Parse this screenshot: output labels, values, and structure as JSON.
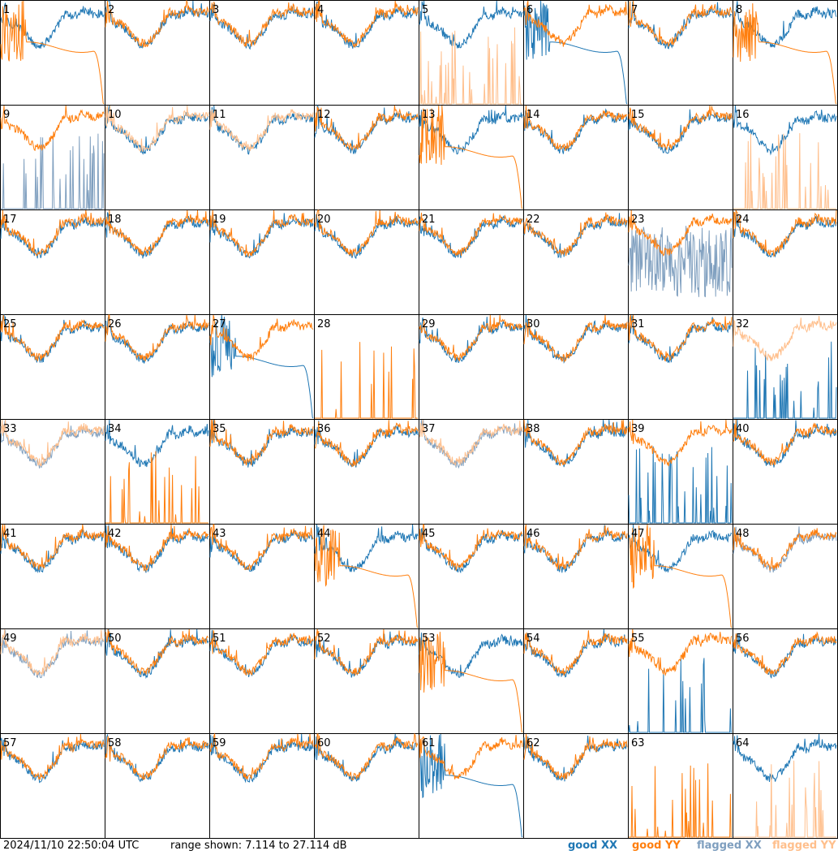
{
  "timestamp": "2024/11/10 22:50:04 UTC",
  "range_text": "range shown: 7.114 to 27.114 dB",
  "legend": {
    "good_xx": "good XX",
    "good_yy": "good YY",
    "flagged_xx": "flagged XX",
    "flagged_yy": "flagged YY"
  },
  "colors": {
    "good_xx": "#1f77b4",
    "good_yy": "#ff7f0e",
    "flagged_xx": "#7f9fbf",
    "flagged_yy": "#ffbf8c"
  },
  "chart_data": {
    "type": "line",
    "grid": "8x8 small multiples",
    "ylim_db": [
      7.114,
      27.114
    ],
    "panels": [
      {
        "id": "1",
        "xx": "good",
        "yy": "good",
        "xxShape": "normal",
        "yyShape": "rolloff"
      },
      {
        "id": "2",
        "xx": "good",
        "yy": "good",
        "xxShape": "normal",
        "yyShape": "normal"
      },
      {
        "id": "3",
        "xx": "good",
        "yy": "good",
        "xxShape": "normal",
        "yyShape": "normal"
      },
      {
        "id": "4",
        "xx": "good",
        "yy": "good",
        "xxShape": "normal",
        "yyShape": "normal"
      },
      {
        "id": "5",
        "xx": "good",
        "yy": "flagged",
        "xxShape": "normal",
        "yyShape": "spikes"
      },
      {
        "id": "6",
        "xx": "good",
        "yy": "good",
        "xxShape": "rolloff",
        "yyShape": "normal"
      },
      {
        "id": "7",
        "xx": "good",
        "yy": "good",
        "xxShape": "normal",
        "yyShape": "normal"
      },
      {
        "id": "8",
        "xx": "good",
        "yy": "good",
        "xxShape": "normal",
        "yyShape": "rolloff"
      },
      {
        "id": "9",
        "xx": "flagged",
        "yy": "good",
        "xxShape": "spikes",
        "yyShape": "normal"
      },
      {
        "id": "10",
        "xx": "good",
        "yy": "flagged",
        "xxShape": "normal",
        "yyShape": "normal"
      },
      {
        "id": "11",
        "xx": "good",
        "yy": "flagged",
        "xxShape": "normal",
        "yyShape": "normal"
      },
      {
        "id": "12",
        "xx": "good",
        "yy": "good",
        "xxShape": "normal",
        "yyShape": "normal"
      },
      {
        "id": "13",
        "xx": "good",
        "yy": "good",
        "xxShape": "normal",
        "yyShape": "rolloff"
      },
      {
        "id": "14",
        "xx": "good",
        "yy": "good",
        "xxShape": "normal",
        "yyShape": "normal"
      },
      {
        "id": "15",
        "xx": "good",
        "yy": "good",
        "xxShape": "normal",
        "yyShape": "normal"
      },
      {
        "id": "16",
        "xx": "good",
        "yy": "flagged",
        "xxShape": "normal",
        "yyShape": "spikes"
      },
      {
        "id": "17",
        "xx": "good",
        "yy": "good",
        "xxShape": "normal",
        "yyShape": "normal"
      },
      {
        "id": "18",
        "xx": "good",
        "yy": "good",
        "xxShape": "normal",
        "yyShape": "normal"
      },
      {
        "id": "19",
        "xx": "good",
        "yy": "good",
        "xxShape": "normal",
        "yyShape": "normal"
      },
      {
        "id": "20",
        "xx": "good",
        "yy": "good",
        "xxShape": "normal",
        "yyShape": "normal"
      },
      {
        "id": "21",
        "xx": "good",
        "yy": "good",
        "xxShape": "normal",
        "yyShape": "normal"
      },
      {
        "id": "22",
        "xx": "good",
        "yy": "good",
        "xxShape": "normal",
        "yyShape": "normal"
      },
      {
        "id": "23",
        "xx": "flagged",
        "yy": "good",
        "xxShape": "noisy",
        "yyShape": "normal"
      },
      {
        "id": "24",
        "xx": "good",
        "yy": "good",
        "xxShape": "normal",
        "yyShape": "normal"
      },
      {
        "id": "25",
        "xx": "good",
        "yy": "good",
        "xxShape": "normal",
        "yyShape": "normal"
      },
      {
        "id": "26",
        "xx": "good",
        "yy": "good",
        "xxShape": "normal",
        "yyShape": "normal"
      },
      {
        "id": "27",
        "xx": "good",
        "yy": "good",
        "xxShape": "rolloff",
        "yyShape": "normal"
      },
      {
        "id": "28",
        "xx": "none",
        "yy": "good",
        "xxShape": "none",
        "yyShape": "spikes"
      },
      {
        "id": "29",
        "xx": "good",
        "yy": "good",
        "xxShape": "normal",
        "yyShape": "normal"
      },
      {
        "id": "30",
        "xx": "good",
        "yy": "good",
        "xxShape": "normal",
        "yyShape": "normal"
      },
      {
        "id": "31",
        "xx": "good",
        "yy": "good",
        "xxShape": "normal",
        "yyShape": "normal"
      },
      {
        "id": "32",
        "xx": "good",
        "yy": "flagged",
        "xxShape": "spikes",
        "yyShape": "normal"
      },
      {
        "id": "33",
        "xx": "flagged",
        "yy": "flagged",
        "xxShape": "normal",
        "yyShape": "normal"
      },
      {
        "id": "34",
        "xx": "good",
        "yy": "good",
        "xxShape": "normal",
        "yyShape": "spikes"
      },
      {
        "id": "35",
        "xx": "good",
        "yy": "good",
        "xxShape": "normal",
        "yyShape": "normal"
      },
      {
        "id": "36",
        "xx": "good",
        "yy": "good",
        "xxShape": "normal",
        "yyShape": "normal"
      },
      {
        "id": "37",
        "xx": "flagged",
        "yy": "flagged",
        "xxShape": "normal",
        "yyShape": "normal"
      },
      {
        "id": "38",
        "xx": "good",
        "yy": "good",
        "xxShape": "normal",
        "yyShape": "normal"
      },
      {
        "id": "39",
        "xx": "good",
        "yy": "good",
        "xxShape": "spikes",
        "yyShape": "normal"
      },
      {
        "id": "40",
        "xx": "good",
        "yy": "good",
        "xxShape": "normal",
        "yyShape": "normal"
      },
      {
        "id": "41",
        "xx": "good",
        "yy": "good",
        "xxShape": "normal",
        "yyShape": "normal"
      },
      {
        "id": "42",
        "xx": "good",
        "yy": "good",
        "xxShape": "normal",
        "yyShape": "normal"
      },
      {
        "id": "43",
        "xx": "good",
        "yy": "good",
        "xxShape": "normal",
        "yyShape": "normal"
      },
      {
        "id": "44",
        "xx": "good",
        "yy": "good",
        "xxShape": "normal",
        "yyShape": "rolloff"
      },
      {
        "id": "45",
        "xx": "good",
        "yy": "good",
        "xxShape": "normal",
        "yyShape": "normal"
      },
      {
        "id": "46",
        "xx": "good",
        "yy": "good",
        "xxShape": "normal",
        "yyShape": "normal"
      },
      {
        "id": "47",
        "xx": "good",
        "yy": "good",
        "xxShape": "normal",
        "yyShape": "rolloff"
      },
      {
        "id": "48",
        "xx": "flagged",
        "yy": "good",
        "xxShape": "normal",
        "yyShape": "normal"
      },
      {
        "id": "49",
        "xx": "flagged",
        "yy": "flagged",
        "xxShape": "normal",
        "yyShape": "normal"
      },
      {
        "id": "50",
        "xx": "good",
        "yy": "good",
        "xxShape": "normal",
        "yyShape": "normal"
      },
      {
        "id": "51",
        "xx": "good",
        "yy": "good",
        "xxShape": "normal",
        "yyShape": "normal"
      },
      {
        "id": "52",
        "xx": "good",
        "yy": "good",
        "xxShape": "normal",
        "yyShape": "normal"
      },
      {
        "id": "53",
        "xx": "good",
        "yy": "good",
        "xxShape": "normal",
        "yyShape": "rolloff"
      },
      {
        "id": "54",
        "xx": "good",
        "yy": "good",
        "xxShape": "normal",
        "yyShape": "normal"
      },
      {
        "id": "55",
        "xx": "good",
        "yy": "good",
        "xxShape": "spikes",
        "yyShape": "normal"
      },
      {
        "id": "56",
        "xx": "good",
        "yy": "good",
        "xxShape": "normal",
        "yyShape": "normal"
      },
      {
        "id": "57",
        "xx": "good",
        "yy": "good",
        "xxShape": "normal",
        "yyShape": "normal"
      },
      {
        "id": "58",
        "xx": "good",
        "yy": "good",
        "xxShape": "normal",
        "yyShape": "normal"
      },
      {
        "id": "59",
        "xx": "good",
        "yy": "good",
        "xxShape": "normal",
        "yyShape": "normal"
      },
      {
        "id": "60",
        "xx": "good",
        "yy": "good",
        "xxShape": "normal",
        "yyShape": "normal"
      },
      {
        "id": "61",
        "xx": "good",
        "yy": "good",
        "xxShape": "rolloff",
        "yyShape": "normal"
      },
      {
        "id": "62",
        "xx": "good",
        "yy": "good",
        "xxShape": "normal",
        "yyShape": "normal"
      },
      {
        "id": "63",
        "xx": "none",
        "yy": "good",
        "xxShape": "none",
        "yyShape": "spikes"
      },
      {
        "id": "64",
        "xx": "good",
        "yy": "flagged",
        "xxShape": "normal",
        "yyShape": "spikes"
      }
    ]
  }
}
